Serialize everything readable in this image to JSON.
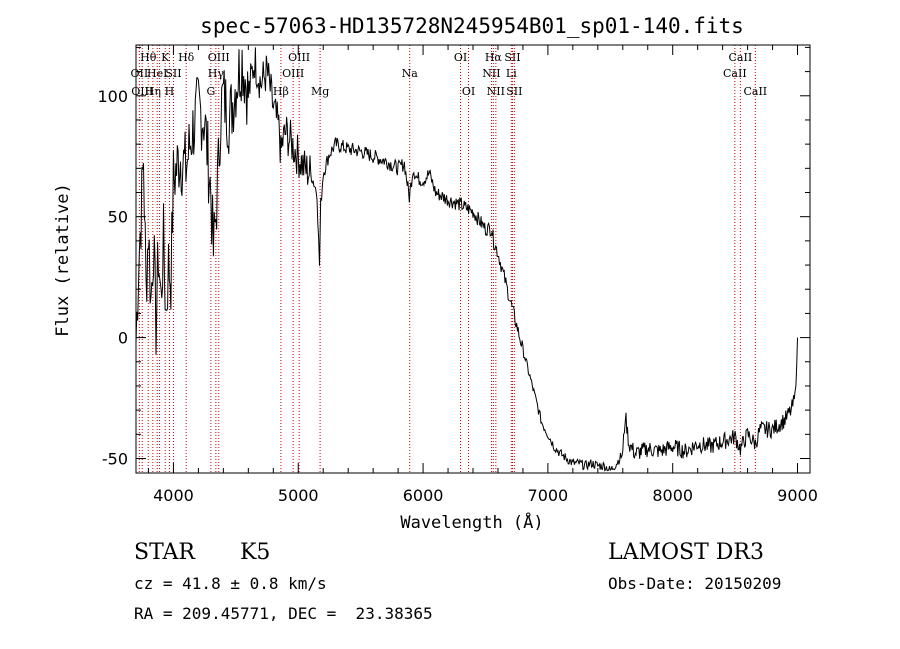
{
  "chart_data": {
    "type": "line",
    "title": "spec-57063-HD135728N245954B01_sp01-140.fits",
    "xlabel": "Wavelength (Å)",
    "ylabel": "Flux (relative)",
    "xlim": [
      3700,
      9100
    ],
    "ylim": [
      -56,
      121
    ],
    "xticks": [
      4000,
      5000,
      6000,
      7000,
      8000,
      9000
    ],
    "yticks": [
      -50,
      0,
      50,
      100
    ],
    "grid": false,
    "series": [
      {
        "color": "#000000",
        "x": [
          3700,
          3720,
          3740,
          3760,
          3780,
          3800,
          3820,
          3840,
          3860,
          3880,
          3900,
          3920,
          3940,
          3960,
          3980,
          4000,
          4050,
          4100,
          4150,
          4200,
          4250,
          4300,
          4320,
          4340,
          4360,
          4380,
          4400,
          4450,
          4500,
          4550,
          4600,
          4650,
          4700,
          4750,
          4800,
          4850,
          4860,
          4870,
          4900,
          4950,
          5000,
          5050,
          5100,
          5150,
          5170,
          5180,
          5200,
          5250,
          5300,
          5400,
          5500,
          5600,
          5700,
          5800,
          5850,
          5890,
          5920,
          5950,
          6000,
          6050,
          6100,
          6200,
          6300,
          6400,
          6500,
          6550,
          6565,
          6600,
          6650,
          6700,
          6750,
          6800,
          6850,
          6900,
          6950,
          7000,
          7050,
          7100,
          7150,
          7200,
          7250,
          7300,
          7350,
          7400,
          7450,
          7500,
          7550,
          7600,
          7620,
          7650,
          7700,
          7800,
          7900,
          8000,
          8100,
          8200,
          8300,
          8400,
          8500,
          8542,
          8600,
          8662,
          8700,
          8800,
          8900,
          8950,
          8980,
          9000
        ],
        "y": [
          -2,
          30,
          50,
          75,
          20,
          45,
          15,
          40,
          5,
          35,
          15,
          40,
          10,
          30,
          25,
          65,
          75,
          70,
          85,
          95,
          90,
          60,
          35,
          50,
          70,
          95,
          100,
          90,
          105,
          115,
          100,
          115,
          105,
          110,
          95,
          85,
          75,
          80,
          85,
          80,
          75,
          70,
          68,
          60,
          30,
          55,
          68,
          76,
          80,
          78,
          77,
          75,
          73,
          70,
          72,
          58,
          70,
          66,
          65,
          68,
          60,
          57,
          55,
          52,
          45,
          45,
          40,
          35,
          25,
          15,
          5,
          -5,
          -15,
          -25,
          -35,
          -40,
          -45,
          -48,
          -50,
          -52,
          -52,
          -53,
          -52,
          -53,
          -53,
          -55,
          -52,
          -48,
          -32,
          -44,
          -48,
          -46,
          -47,
          -45,
          -47,
          -44,
          -45,
          -43,
          -41,
          -46,
          -40,
          -44,
          -38,
          -38,
          -34,
          -30,
          -25,
          0
        ]
      }
    ],
    "line_markers": [
      {
        "wl": 3727,
        "label": "OII",
        "row": 2
      },
      {
        "wl": 3750,
        "label": "OIII",
        "row": 3
      },
      {
        "wl": 3798,
        "label": "Hθ",
        "row": 1
      },
      {
        "wl": 3835,
        "label": "Hη",
        "row": 3
      },
      {
        "wl": 3870,
        "label": "HeI",
        "row": 2
      },
      {
        "wl": 3889,
        "label": "",
        "row": 0
      },
      {
        "wl": 3934,
        "label": "K",
        "row": 1
      },
      {
        "wl": 3968,
        "label": "H",
        "row": 3
      },
      {
        "wl": 4000,
        "label": "SII",
        "row": 2
      },
      {
        "wl": 4102,
        "label": "Hδ",
        "row": 1
      },
      {
        "wl": 4300,
        "label": "G",
        "row": 3
      },
      {
        "wl": 4340,
        "label": "Hγ",
        "row": 2
      },
      {
        "wl": 4363,
        "label": "OIII",
        "row": 1
      },
      {
        "wl": 4861,
        "label": "Hβ",
        "row": 3
      },
      {
        "wl": 4959,
        "label": "OIII",
        "row": 2
      },
      {
        "wl": 5007,
        "label": "OIII",
        "row": 1
      },
      {
        "wl": 5175,
        "label": "Mg",
        "row": 3
      },
      {
        "wl": 5893,
        "label": "Na",
        "row": 2
      },
      {
        "wl": 6300,
        "label": "OI",
        "row": 1
      },
      {
        "wl": 6364,
        "label": "OI",
        "row": 3
      },
      {
        "wl": 6548,
        "label": "NII",
        "row": 2
      },
      {
        "wl": 6563,
        "label": "Hα",
        "row": 1
      },
      {
        "wl": 6583,
        "label": "NII",
        "row": 3
      },
      {
        "wl": 6707,
        "label": "Li",
        "row": 2
      },
      {
        "wl": 6716,
        "label": "SII",
        "row": 1
      },
      {
        "wl": 6731,
        "label": "SII",
        "row": 3
      },
      {
        "wl": 8498,
        "label": "CaII",
        "row": 2
      },
      {
        "wl": 8542,
        "label": "CaII",
        "row": 1
      },
      {
        "wl": 8662,
        "label": "CaII",
        "row": 3
      }
    ],
    "marker_color": "#cc0000"
  },
  "info": {
    "object_type": "STAR",
    "subclass": "K5",
    "survey": "LAMOST DR3",
    "cz": "cz = 41.8 ± 0.8 km/s",
    "obs_date": "Obs-Date: 20150209",
    "coords": "RA = 209.45771, DEC =  23.38365"
  }
}
